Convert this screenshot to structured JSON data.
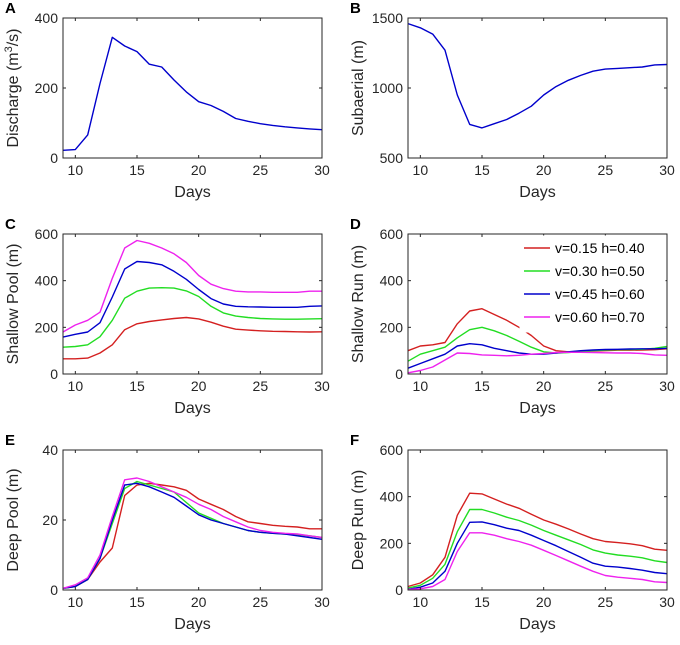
{
  "chart_data": [
    {
      "panel_label": "A",
      "type": "line",
      "xlabel": "Days",
      "ylabel_main": "Discharge (m",
      "ylabel_sup": "3",
      "ylabel_tail": "/s)",
      "xlim": [
        9,
        30
      ],
      "ylim": [
        0,
        400
      ],
      "xticks": [
        10,
        15,
        20,
        25,
        30
      ],
      "yticks": [
        0,
        200,
        400
      ],
      "series": [
        {
          "name": "Discharge",
          "color": "#0000cc",
          "x": [
            9,
            10,
            11,
            12,
            13,
            14,
            15,
            16,
            17,
            18,
            19,
            20,
            21,
            22,
            23,
            24,
            25,
            26,
            27,
            28,
            29,
            30
          ],
          "y": [
            22,
            24,
            66,
            213,
            345,
            320,
            304,
            268,
            260,
            223,
            189,
            161,
            150,
            133,
            113,
            105,
            98,
            93,
            89,
            86,
            83,
            81
          ]
        }
      ]
    },
    {
      "panel_label": "B",
      "type": "line",
      "xlabel": "Days",
      "ylabel_main": "Subaerial (m)",
      "xlim": [
        9,
        30
      ],
      "ylim": [
        500,
        1500
      ],
      "xticks": [
        10,
        15,
        20,
        25,
        30
      ],
      "yticks": [
        500,
        1000,
        1500
      ],
      "series": [
        {
          "name": "Subaerial",
          "color": "#0000cc",
          "x": [
            9,
            10,
            11,
            12,
            13,
            14,
            15,
            16,
            17,
            18,
            19,
            20,
            21,
            22,
            23,
            24,
            25,
            26,
            27,
            28,
            29,
            30
          ],
          "y": [
            1460,
            1430,
            1385,
            1270,
            950,
            740,
            715,
            745,
            775,
            820,
            870,
            950,
            1010,
            1055,
            1090,
            1120,
            1135,
            1140,
            1145,
            1150,
            1165,
            1168
          ]
        }
      ]
    },
    {
      "panel_label": "C",
      "type": "line",
      "xlabel": "Days",
      "ylabel_main": "Shallow Pool (m)",
      "xlim": [
        9,
        30
      ],
      "ylim": [
        0,
        600
      ],
      "xticks": [
        10,
        15,
        20,
        25,
        30
      ],
      "yticks": [
        0,
        200,
        400,
        600
      ],
      "series": [
        {
          "name": "v=0.15 h=0.40",
          "color": "#d42020",
          "x": [
            9,
            10,
            11,
            12,
            13,
            14,
            15,
            16,
            17,
            18,
            19,
            20,
            21,
            22,
            23,
            24,
            25,
            26,
            27,
            28,
            29,
            30
          ],
          "y": [
            65,
            65,
            68,
            90,
            125,
            190,
            215,
            225,
            232,
            238,
            242,
            236,
            222,
            205,
            192,
            188,
            185,
            183,
            182,
            181,
            180,
            181
          ]
        },
        {
          "name": "v=0.30 h=0.50",
          "color": "#22dd22",
          "x": [
            9,
            10,
            11,
            12,
            13,
            14,
            15,
            16,
            17,
            18,
            19,
            20,
            21,
            22,
            23,
            24,
            25,
            26,
            27,
            28,
            29,
            30
          ],
          "y": [
            115,
            118,
            125,
            160,
            230,
            325,
            355,
            368,
            370,
            368,
            356,
            332,
            290,
            262,
            248,
            242,
            238,
            236,
            235,
            235,
            236,
            237
          ]
        },
        {
          "name": "v=0.45 h=0.60",
          "color": "#0000cc",
          "x": [
            9,
            10,
            11,
            12,
            13,
            14,
            15,
            16,
            17,
            18,
            19,
            20,
            21,
            22,
            23,
            24,
            25,
            26,
            27,
            28,
            29,
            30
          ],
          "y": [
            158,
            170,
            180,
            220,
            330,
            450,
            482,
            478,
            468,
            440,
            406,
            362,
            323,
            300,
            290,
            288,
            287,
            286,
            286,
            286,
            290,
            292
          ]
        },
        {
          "name": "v=0.60 h=0.70",
          "color": "#ee22ee",
          "x": [
            9,
            10,
            11,
            12,
            13,
            14,
            15,
            16,
            17,
            18,
            19,
            20,
            21,
            22,
            23,
            24,
            25,
            26,
            27,
            28,
            29,
            30
          ],
          "y": [
            180,
            210,
            230,
            265,
            410,
            540,
            572,
            560,
            540,
            515,
            478,
            422,
            385,
            366,
            355,
            352,
            352,
            350,
            350,
            350,
            355,
            355
          ]
        }
      ]
    },
    {
      "panel_label": "D",
      "type": "line",
      "xlabel": "Days",
      "ylabel_main": "Shallow Run (m)",
      "xlim": [
        9,
        30
      ],
      "ylim": [
        0,
        600
      ],
      "xticks": [
        10,
        15,
        20,
        25,
        30
      ],
      "yticks": [
        0,
        200,
        400,
        600
      ],
      "legend_position": "top-right",
      "series": [
        {
          "name": "v=0.15 h=0.40",
          "color": "#d42020",
          "x": [
            9,
            10,
            11,
            12,
            13,
            14,
            15,
            16,
            17,
            18,
            19,
            20,
            21,
            22,
            23,
            24,
            25,
            26,
            27,
            28,
            29,
            30
          ],
          "y": [
            100,
            120,
            125,
            135,
            215,
            270,
            280,
            255,
            230,
            200,
            165,
            120,
            100,
            95,
            95,
            98,
            100,
            102,
            102,
            103,
            104,
            108
          ]
        },
        {
          "name": "v=0.30 h=0.50",
          "color": "#22dd22",
          "x": [
            9,
            10,
            11,
            12,
            13,
            14,
            15,
            16,
            17,
            18,
            19,
            20,
            21,
            22,
            23,
            24,
            25,
            26,
            27,
            28,
            29,
            30
          ],
          "y": [
            55,
            85,
            100,
            115,
            155,
            190,
            200,
            185,
            165,
            140,
            115,
            95,
            90,
            92,
            96,
            100,
            103,
            104,
            105,
            106,
            110,
            118
          ]
        },
        {
          "name": "v=0.45 h=0.60",
          "color": "#0000cc",
          "x": [
            9,
            10,
            11,
            12,
            13,
            14,
            15,
            16,
            17,
            18,
            19,
            20,
            21,
            22,
            23,
            24,
            25,
            26,
            27,
            28,
            29,
            30
          ],
          "y": [
            25,
            45,
            65,
            85,
            120,
            130,
            125,
            110,
            100,
            90,
            85,
            85,
            90,
            95,
            100,
            103,
            105,
            106,
            107,
            108,
            108,
            110
          ]
        },
        {
          "name": "v=0.60 h=0.70",
          "color": "#ee22ee",
          "x": [
            9,
            10,
            11,
            12,
            13,
            14,
            15,
            16,
            17,
            18,
            19,
            20,
            21,
            22,
            23,
            24,
            25,
            26,
            27,
            28,
            29,
            30
          ],
          "y": [
            5,
            15,
            30,
            60,
            90,
            88,
            82,
            80,
            78,
            80,
            85,
            88,
            92,
            93,
            93,
            92,
            91,
            90,
            90,
            88,
            82,
            80
          ]
        }
      ]
    },
    {
      "panel_label": "E",
      "type": "line",
      "xlabel": "Days",
      "ylabel_main": "Deep Pool (m)",
      "xlim": [
        9,
        30
      ],
      "ylim": [
        0,
        40
      ],
      "xticks": [
        10,
        15,
        20,
        25,
        30
      ],
      "yticks": [
        0,
        20,
        40
      ],
      "series": [
        {
          "name": "v=0.15 h=0.40",
          "color": "#d42020",
          "x": [
            9,
            10,
            11,
            12,
            13,
            14,
            15,
            16,
            17,
            18,
            19,
            20,
            21,
            22,
            23,
            24,
            25,
            26,
            27,
            28,
            29,
            30
          ],
          "y": [
            0.5,
            1,
            3,
            8,
            12,
            27,
            30,
            30.5,
            30,
            29.5,
            28.5,
            26,
            24.5,
            23,
            21,
            19.5,
            19,
            18.5,
            18.2,
            18,
            17.5,
            17.5
          ]
        },
        {
          "name": "v=0.30 h=0.50",
          "color": "#22dd22",
          "x": [
            9,
            10,
            11,
            12,
            13,
            14,
            15,
            16,
            17,
            18,
            19,
            20,
            21,
            22,
            23,
            24,
            25,
            26,
            27,
            28,
            29,
            30
          ],
          "y": [
            0.5,
            1,
            3,
            9,
            19,
            29,
            31,
            30,
            29,
            28,
            25,
            22,
            20.5,
            19,
            18,
            17,
            16.5,
            16.2,
            16,
            15.8,
            15.5,
            15
          ]
        },
        {
          "name": "v=0.45 h=0.60",
          "color": "#0000cc",
          "x": [
            9,
            10,
            11,
            12,
            13,
            14,
            15,
            16,
            17,
            18,
            19,
            20,
            21,
            22,
            23,
            24,
            25,
            26,
            27,
            28,
            29,
            30
          ],
          "y": [
            0.5,
            1,
            3,
            9,
            20,
            30,
            30.5,
            29.5,
            28,
            26.5,
            24,
            21.5,
            20,
            19,
            18,
            17,
            16.5,
            16.2,
            16,
            15.5,
            15,
            14.5
          ]
        },
        {
          "name": "v=0.60 h=0.70",
          "color": "#ee22ee",
          "x": [
            9,
            10,
            11,
            12,
            13,
            14,
            15,
            16,
            17,
            18,
            19,
            20,
            21,
            22,
            23,
            24,
            25,
            26,
            27,
            28,
            29,
            30
          ],
          "y": [
            0.5,
            1.5,
            3.5,
            10,
            21,
            31.5,
            32,
            31,
            29.5,
            28,
            26.5,
            24.5,
            23,
            21,
            19.5,
            18,
            17,
            16.5,
            16.2,
            16,
            15.5,
            15
          ]
        }
      ]
    },
    {
      "panel_label": "F",
      "type": "line",
      "xlabel": "Days",
      "ylabel_main": "Deep Run (m)",
      "xlim": [
        9,
        30
      ],
      "ylim": [
        0,
        600
      ],
      "xticks": [
        10,
        15,
        20,
        25,
        30
      ],
      "yticks": [
        0,
        200,
        400,
        600
      ],
      "series": [
        {
          "name": "v=0.15 h=0.40",
          "color": "#d42020",
          "x": [
            9,
            10,
            11,
            12,
            13,
            14,
            15,
            16,
            17,
            18,
            19,
            20,
            21,
            22,
            23,
            24,
            25,
            26,
            27,
            28,
            29,
            30
          ],
          "y": [
            15,
            30,
            65,
            140,
            320,
            415,
            412,
            390,
            368,
            350,
            325,
            300,
            282,
            262,
            240,
            220,
            208,
            203,
            198,
            190,
            175,
            170
          ]
        },
        {
          "name": "v=0.30 h=0.50",
          "color": "#22dd22",
          "x": [
            9,
            10,
            11,
            12,
            13,
            14,
            15,
            16,
            17,
            18,
            19,
            20,
            21,
            22,
            23,
            24,
            25,
            26,
            27,
            28,
            29,
            30
          ],
          "y": [
            8,
            20,
            50,
            110,
            250,
            345,
            345,
            330,
            312,
            298,
            278,
            255,
            235,
            215,
            195,
            172,
            158,
            150,
            145,
            138,
            125,
            118
          ]
        },
        {
          "name": "v=0.45 h=0.60",
          "color": "#0000cc",
          "x": [
            9,
            10,
            11,
            12,
            13,
            14,
            15,
            16,
            17,
            18,
            19,
            20,
            21,
            22,
            23,
            24,
            25,
            26,
            27,
            28,
            29,
            30
          ],
          "y": [
            3,
            12,
            30,
            80,
            200,
            290,
            292,
            280,
            265,
            255,
            235,
            212,
            190,
            165,
            140,
            115,
            102,
            98,
            92,
            85,
            75,
            70
          ]
        },
        {
          "name": "v=0.60 h=0.70",
          "color": "#ee22ee",
          "x": [
            9,
            10,
            11,
            12,
            13,
            14,
            15,
            16,
            17,
            18,
            19,
            20,
            21,
            22,
            23,
            24,
            25,
            26,
            27,
            28,
            29,
            30
          ],
          "y": [
            2,
            5,
            15,
            45,
            165,
            245,
            245,
            235,
            220,
            208,
            192,
            170,
            148,
            125,
            102,
            80,
            62,
            55,
            50,
            45,
            35,
            32
          ]
        }
      ]
    }
  ]
}
